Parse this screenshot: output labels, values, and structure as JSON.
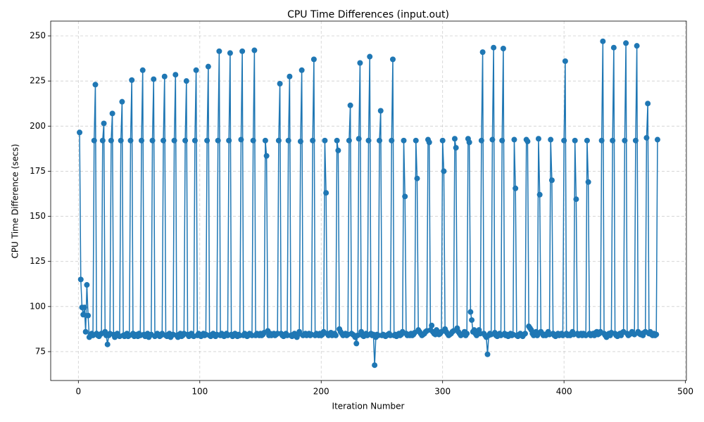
{
  "chart_data": {
    "type": "line",
    "title": "CPU Time Differences (input.out)",
    "x_label": "Iteration Number",
    "y_label": "CPU Time Difference (secs)",
    "color": "#1f77b4",
    "grid": true,
    "xlim": [
      -22.8,
      500.8
    ],
    "ylim": [
      59,
      258.2
    ],
    "xticks": [
      0,
      100,
      200,
      300,
      400,
      500
    ],
    "yticks": [
      75,
      100,
      125,
      150,
      175,
      200,
      225,
      250
    ],
    "x": [
      1,
      2,
      3,
      4,
      5,
      6,
      7,
      8,
      9,
      10,
      11,
      12,
      13,
      14,
      15,
      16,
      17,
      18,
      19,
      20,
      21,
      22,
      23,
      24,
      25,
      26,
      27,
      28,
      29,
      30,
      31,
      32,
      33,
      34,
      35,
      36,
      37,
      38,
      39,
      40,
      41,
      42,
      43,
      44,
      45,
      46,
      47,
      48,
      49,
      50,
      51,
      52,
      53,
      54,
      55,
      56,
      57,
      58,
      59,
      60,
      61,
      62,
      63,
      64,
      65,
      66,
      67,
      68,
      69,
      70,
      71,
      72,
      73,
      74,
      75,
      76,
      77,
      78,
      79,
      80,
      81,
      82,
      83,
      84,
      85,
      86,
      87,
      88,
      89,
      90,
      91,
      92,
      93,
      94,
      95,
      96,
      97,
      98,
      99,
      100,
      101,
      102,
      103,
      104,
      105,
      106,
      107,
      108,
      109,
      110,
      111,
      112,
      113,
      114,
      115,
      116,
      117,
      118,
      119,
      120,
      121,
      122,
      123,
      124,
      125,
      126,
      127,
      128,
      129,
      130,
      131,
      132,
      133,
      134,
      135,
      136,
      137,
      138,
      139,
      140,
      141,
      142,
      143,
      144,
      145,
      146,
      147,
      148,
      149,
      150,
      151,
      152,
      153,
      154,
      155,
      156,
      157,
      158,
      159,
      160,
      161,
      162,
      163,
      164,
      165,
      166,
      167,
      168,
      169,
      170,
      171,
      172,
      173,
      174,
      175,
      176,
      177,
      178,
      179,
      180,
      181,
      182,
      183,
      184,
      185,
      186,
      187,
      188,
      189,
      190,
      191,
      192,
      193,
      194,
      195,
      196,
      197,
      198,
      199,
      200,
      201,
      202,
      203,
      204,
      205,
      206,
      207,
      208,
      209,
      210,
      211,
      212,
      213,
      214,
      215,
      216,
      217,
      218,
      219,
      220,
      221,
      222,
      223,
      224,
      225,
      226,
      227,
      228,
      229,
      230,
      231,
      232,
      233,
      234,
      235,
      236,
      237,
      238,
      239,
      240,
      241,
      242,
      243,
      244,
      245,
      246,
      247,
      248,
      249,
      250,
      251,
      252,
      253,
      254,
      255,
      256,
      257,
      258,
      259,
      260,
      261,
      262,
      263,
      264,
      265,
      266,
      267,
      268,
      269,
      270,
      271,
      272,
      273,
      274,
      275,
      276,
      277,
      278,
      279,
      280,
      281,
      282,
      283,
      284,
      285,
      286,
      287,
      288,
      289,
      290,
      291,
      292,
      293,
      294,
      295,
      296,
      297,
      298,
      299,
      300,
      301,
      302,
      303,
      304,
      305,
      306,
      307,
      308,
      309,
      310,
      311,
      312,
      313,
      314,
      315,
      316,
      317,
      318,
      319,
      320,
      321,
      322,
      323,
      324,
      325,
      326,
      327,
      328,
      329,
      330,
      331,
      332,
      333,
      334,
      335,
      336,
      337,
      338,
      339,
      340,
      341,
      342,
      343,
      344,
      345,
      346,
      347,
      348,
      349,
      350,
      351,
      352,
      353,
      354,
      355,
      356,
      357,
      358,
      359,
      360,
      361,
      362,
      363,
      364,
      365,
      366,
      367,
      368,
      369,
      370,
      371,
      372,
      373,
      374,
      375,
      376,
      377,
      378,
      379,
      380,
      381,
      382,
      383,
      384,
      385,
      386,
      387,
      388,
      389,
      390,
      391,
      392,
      393,
      394,
      395,
      396,
      397,
      398,
      399,
      400,
      401,
      402,
      403,
      404,
      405,
      406,
      407,
      408,
      409,
      410,
      411,
      412,
      413,
      414,
      415,
      416,
      417,
      418,
      419,
      420,
      421,
      422,
      423,
      424,
      425,
      426,
      427,
      428,
      429,
      430,
      431,
      432,
      433,
      434,
      435,
      436,
      437,
      438,
      439,
      440,
      441,
      442,
      443,
      444,
      445,
      446,
      447,
      448,
      449,
      450,
      451,
      452,
      453,
      454,
      455,
      456,
      457,
      458,
      459,
      460,
      461,
      462,
      463,
      464,
      465,
      466,
      467,
      468,
      469,
      470,
      471,
      472,
      473,
      474,
      475,
      476,
      477
    ],
    "values": [
      196.5,
      115,
      99.5,
      95.5,
      99.5,
      86,
      112,
      95,
      83,
      84.5,
      85,
      84,
      192,
      223,
      85,
      84,
      83.5,
      84.5,
      85,
      192,
      201.5,
      86,
      84,
      79,
      84,
      85,
      192,
      207,
      84.5,
      83,
      84,
      85,
      84,
      83.5,
      192,
      213.5,
      84,
      83.5,
      84.5,
      85,
      83.5,
      84,
      192,
      225.5,
      85,
      83.5,
      84,
      84.5,
      83.5,
      85,
      84,
      192,
      231,
      84.5,
      83.5,
      84,
      85,
      83,
      84,
      84.5,
      192,
      226,
      83.5,
      84,
      85,
      84.5,
      83.5,
      84,
      85,
      192,
      227.5,
      84,
      83.5,
      84.5,
      85,
      83,
      84,
      84.5,
      192,
      228.5,
      84,
      83,
      84.5,
      85,
      83.5,
      84,
      85,
      192,
      225,
      84.5,
      83.5,
      84,
      85,
      84,
      83.5,
      192,
      231,
      84,
      85,
      84,
      83.5,
      84.5,
      85,
      84,
      84.5,
      192,
      233,
      84,
      83.5,
      84.5,
      85,
      84,
      83.5,
      84.5,
      192,
      241.5,
      84,
      85,
      84.5,
      83.5,
      84,
      85,
      84,
      192,
      240.5,
      84.5,
      83.5,
      84,
      85,
      84,
      83.5,
      84.5,
      84,
      192.5,
      241.5,
      84,
      85,
      84.5,
      83.5,
      84,
      85,
      84.5,
      84,
      192,
      242,
      84,
      85,
      84.5,
      84,
      85,
      84,
      84.5,
      85.5,
      192,
      183.5,
      86.5,
      84,
      85,
      84,
      84.5,
      85,
      84,
      84.5,
      85,
      192,
      223.5,
      85,
      84,
      83.5,
      84.5,
      85,
      84,
      192,
      227.5,
      84,
      83.5,
      84.5,
      85,
      84,
      83,
      84.5,
      86,
      191.5,
      231,
      84,
      84.5,
      85,
      84,
      84.5,
      85,
      84,
      84.5,
      192,
      237,
      84,
      85,
      84.5,
      84,
      85,
      84,
      84.5,
      86,
      192,
      163,
      85,
      84,
      84.5,
      85.5,
      84,
      84.5,
      85,
      84,
      192,
      186.5,
      87.5,
      86,
      85,
      84,
      84.5,
      85,
      84,
      84.5,
      192,
      211.5,
      85,
      84.5,
      84,
      83,
      79.5,
      84,
      193,
      235,
      86,
      84,
      83.5,
      84.5,
      85,
      84,
      192,
      238.5,
      85,
      84,
      84.5,
      67.5,
      83,
      84.5,
      84,
      192,
      208.5,
      84,
      84.5,
      84,
      83.5,
      84,
      84.5,
      85,
      84,
      192,
      237,
      84,
      84.5,
      83.5,
      84,
      85,
      84,
      84.5,
      86,
      192,
      161,
      85,
      84,
      84.5,
      84,
      85,
      84,
      84.5,
      85.5,
      192,
      171,
      87,
      86,
      85,
      84,
      84.5,
      85,
      86,
      86.5,
      192.5,
      191,
      87,
      89.5,
      86,
      85,
      84.5,
      87,
      86,
      84.5,
      85,
      86,
      192,
      175,
      87.5,
      86,
      85,
      84,
      84.5,
      85,
      86,
      86.5,
      193,
      188,
      88,
      86,
      85,
      84,
      84.5,
      85,
      86,
      84,
      85,
      193,
      191,
      97,
      92.5,
      86,
      87,
      85,
      84,
      86,
      87,
      85,
      192,
      241,
      85,
      84,
      83,
      73.5,
      84,
      85,
      84.5,
      192.5,
      243.5,
      85.5,
      84,
      83.5,
      84.5,
      85,
      84,
      192,
      243,
      85,
      84,
      84.5,
      83.5,
      84,
      85,
      84,
      84.5,
      192.5,
      165.5,
      84,
      83.5,
      84.5,
      85,
      84,
      83.5,
      84.5,
      85,
      192.5,
      191.5,
      89,
      88,
      87,
      85,
      84,
      85.5,
      86,
      84,
      193,
      162,
      86,
      85,
      84,
      84.5,
      84,
      85,
      86,
      84.5,
      192.5,
      170,
      85,
      84,
      83.5,
      84.5,
      85,
      84,
      84.5,
      85,
      84,
      192,
      236,
      85,
      84,
      84.5,
      84,
      85,
      86,
      84.5,
      192,
      159.5,
      85,
      84,
      84.5,
      85,
      84,
      85,
      84.5,
      84,
      192,
      169,
      85,
      84,
      84.5,
      85,
      84,
      85.5,
      86,
      84.5,
      85,
      86,
      192,
      247,
      85,
      84,
      83,
      84.5,
      85,
      84,
      85.5,
      192,
      243.5,
      85,
      84,
      83.5,
      84.5,
      85,
      84,
      85.5,
      86,
      192,
      246,
      85,
      84,
      84.5,
      85,
      86,
      85,
      84.5,
      192,
      244.5,
      86,
      85,
      84.5,
      85,
      84,
      85.5,
      86,
      193.5,
      212.5,
      85,
      86,
      84.5,
      84,
      85,
      84,
      84.5,
      192.5
    ]
  }
}
